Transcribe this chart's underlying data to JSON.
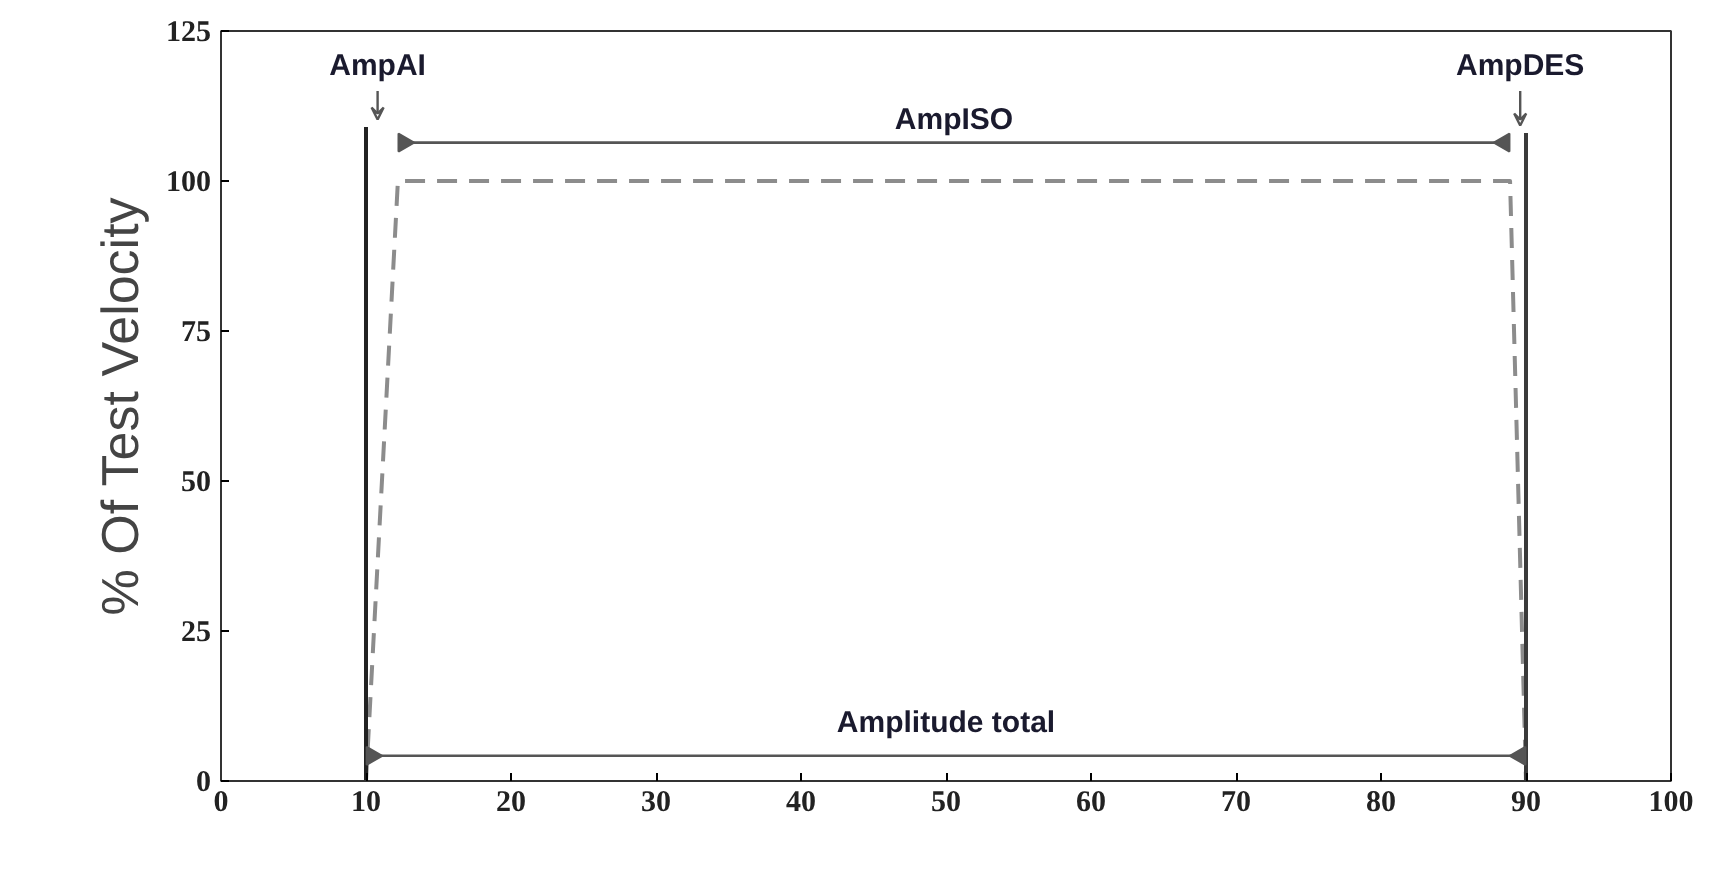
{
  "chart_data": {
    "type": "line",
    "ylabel": "% Of Test Velocity",
    "xlim": [
      0,
      100
    ],
    "ylim": [
      0,
      125
    ],
    "xticks": [
      0,
      10,
      20,
      30,
      40,
      50,
      60,
      70,
      80,
      90,
      100
    ],
    "yticks": [
      0,
      25,
      50,
      75,
      100,
      125
    ],
    "series": [
      {
        "color": "#8c8c8c",
        "line_style": "dashed",
        "x": [
          10,
          12.2,
          88.9,
          90
        ],
        "values": [
          0,
          100,
          100,
          0
        ]
      },
      {
        "color": "#222222",
        "line_style": "solid",
        "x": [
          10,
          10,
          10
        ],
        "values": [
          0,
          55,
          109
        ]
      },
      {
        "color": "#3a3a3a",
        "line_style": "solid",
        "x": [
          90,
          90,
          90
        ],
        "values": [
          0,
          55,
          108
        ]
      },
      {
        "color": "#555555",
        "line_style": "solid",
        "marker": "triangle",
        "x": [
          12.6,
          88.5
        ],
        "values": [
          106.4,
          106.4
        ]
      },
      {
        "color": "#555555",
        "line_style": "solid",
        "marker": "triangle",
        "x": [
          10.4,
          89.6
        ],
        "values": [
          4.2,
          4.2
        ]
      }
    ],
    "annotations": [
      "AmpAI",
      "AmpDES",
      "AmpISO",
      "Amplitude total"
    ]
  }
}
